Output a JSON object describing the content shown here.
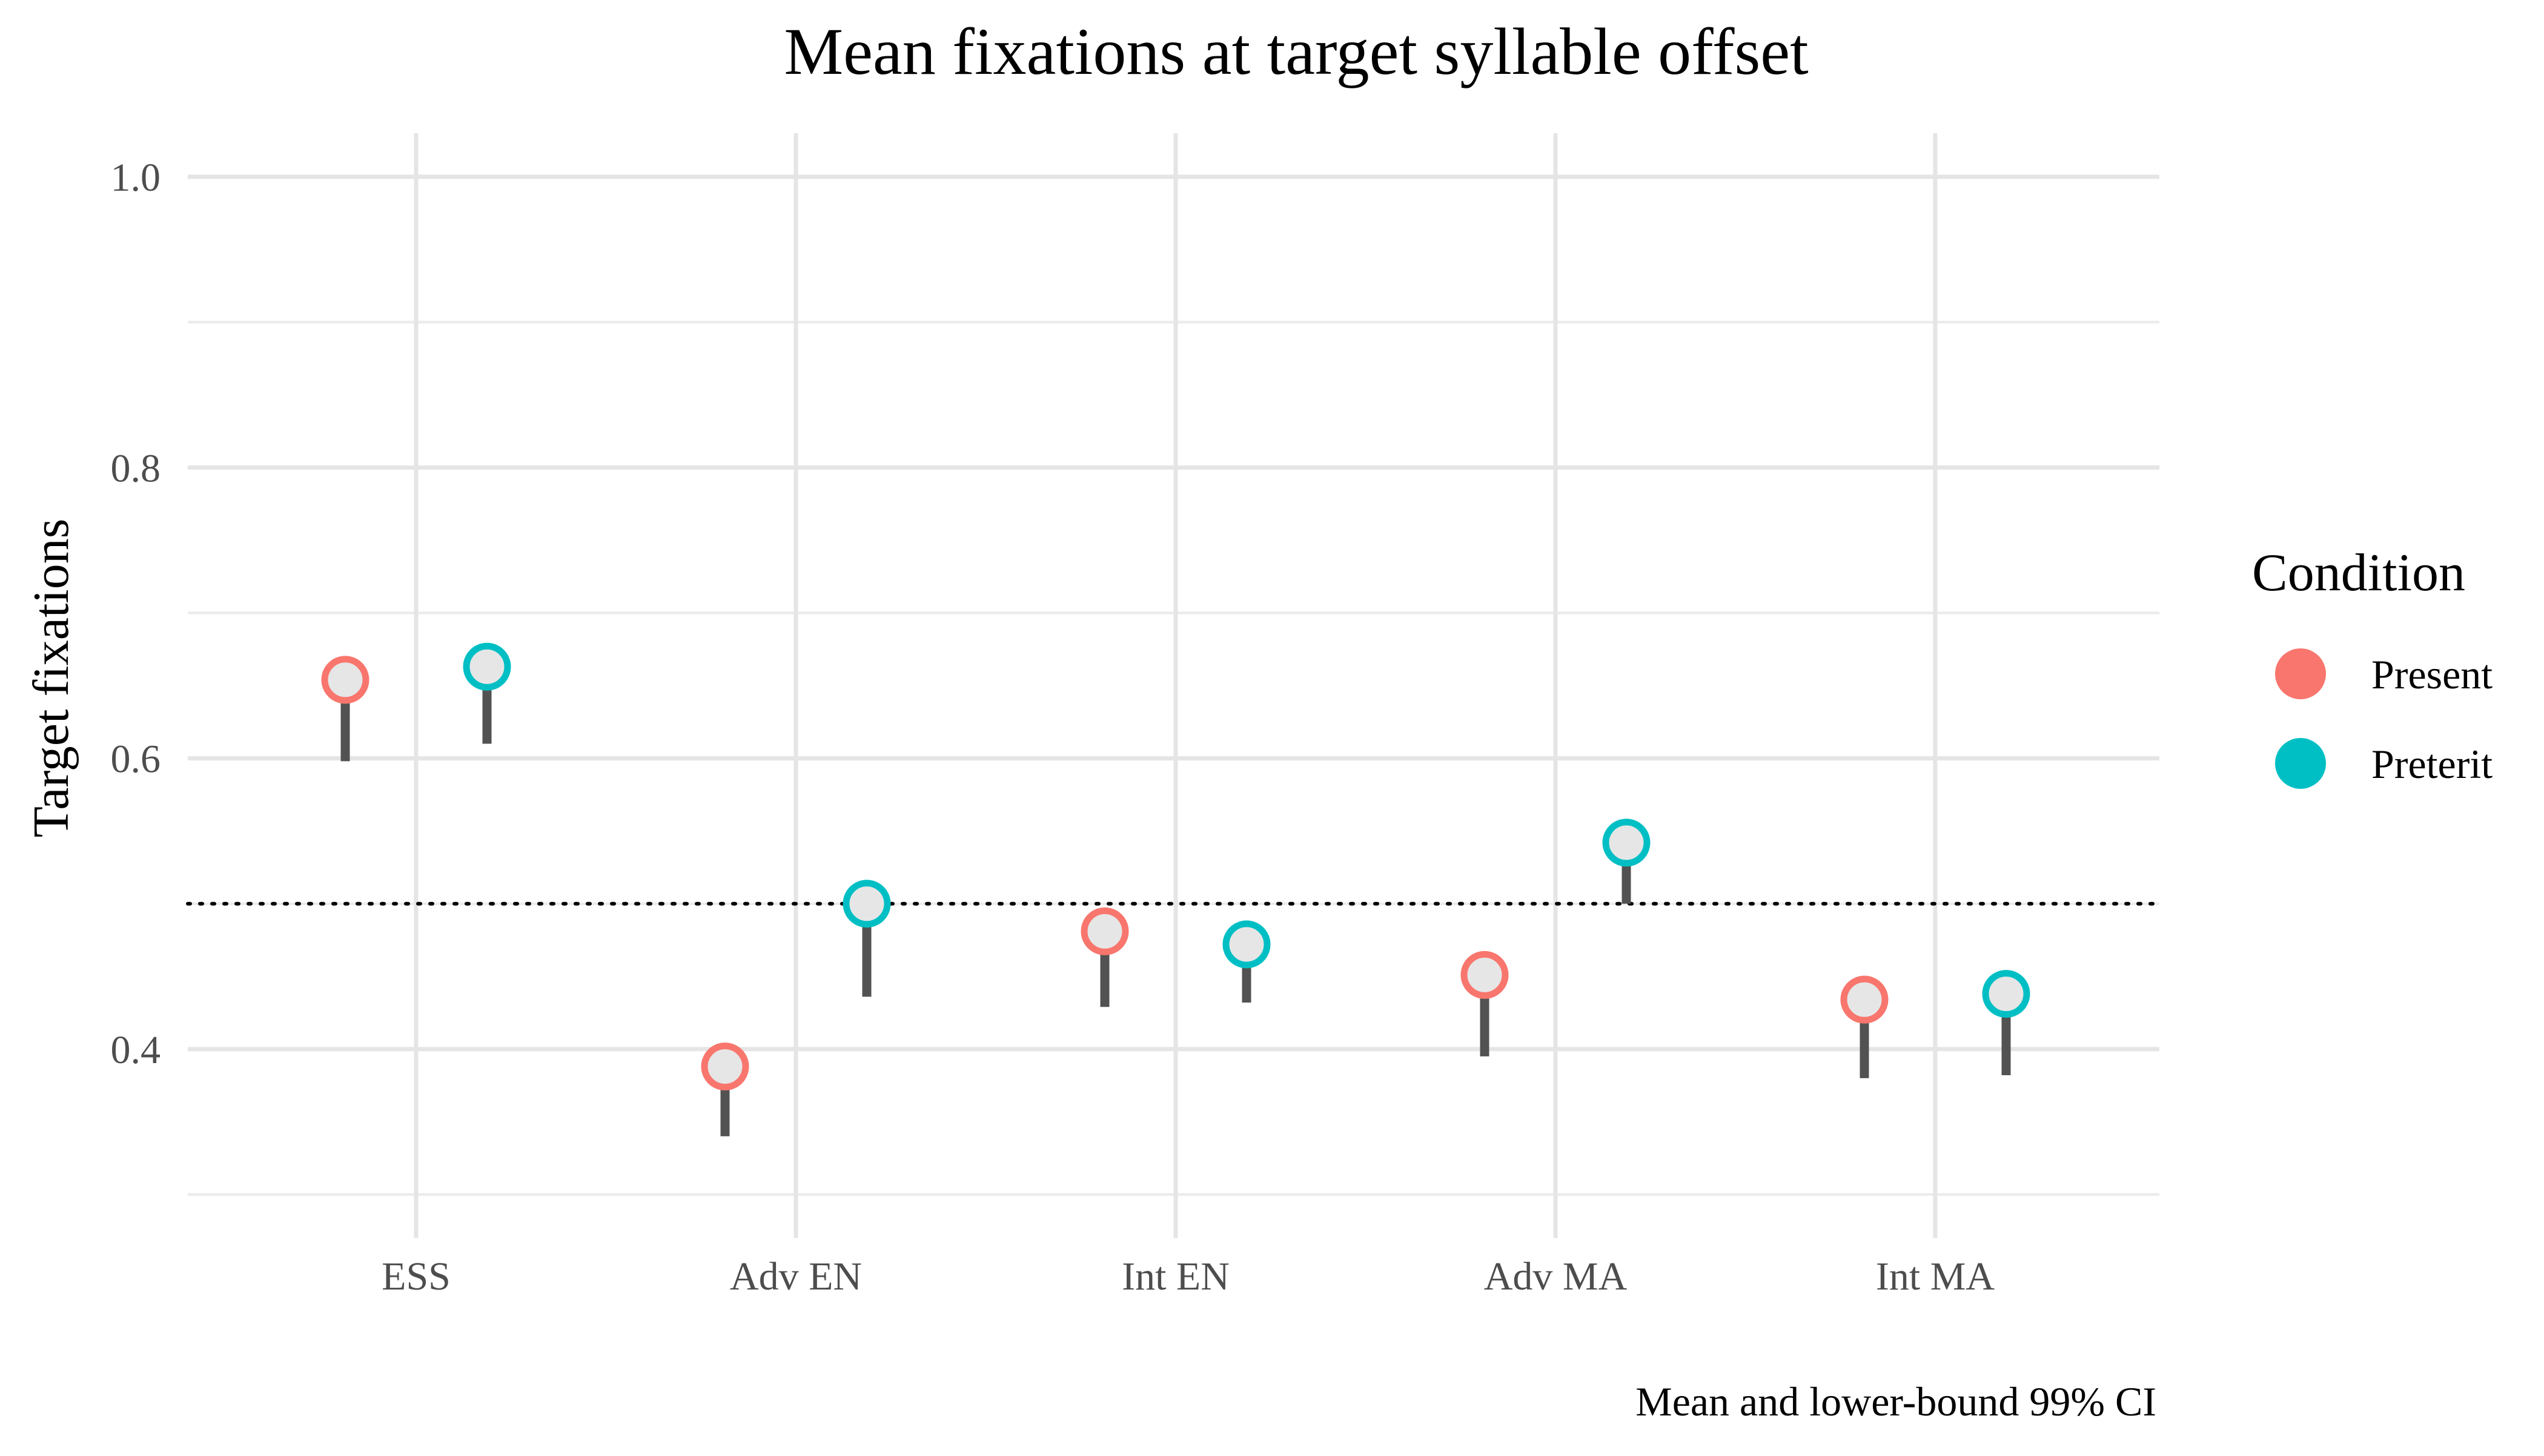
{
  "chart_data": {
    "type": "scatter",
    "title": "Mean fixations at target syllable offset",
    "xlabel": "",
    "ylabel": "Target fixations",
    "caption": "Mean and lower-bound 99% CI",
    "categories": [
      "ESS",
      "Adv EN",
      "Int EN",
      "Adv MA",
      "Int MA"
    ],
    "ylim": [
      0.27,
      1.03
    ],
    "y_ticks": [
      0.4,
      0.6,
      0.8,
      1.0
    ],
    "y_tick_labels": [
      "0.4",
      "0.6",
      "0.8",
      "1.0"
    ],
    "y_minor_ticks": [
      0.3,
      0.5,
      0.7,
      0.9
    ],
    "reference_line": 0.5,
    "legend": {
      "title": "Condition",
      "position": "right"
    },
    "series": [
      {
        "name": "Present",
        "color": "#F8766D",
        "values": [
          0.654,
          0.388,
          0.481,
          0.451,
          0.434
        ],
        "lower_ci": [
          0.598,
          0.34,
          0.429,
          0.395,
          0.38
        ]
      },
      {
        "name": "Preterit",
        "color": "#00BFC4",
        "values": [
          0.663,
          0.5,
          0.472,
          0.542,
          0.438
        ],
        "lower_ci": [
          0.61,
          0.436,
          0.432,
          0.5,
          0.382
        ]
      }
    ],
    "point_fill": "#E6E6E6",
    "ci_color": "#525252",
    "grid": true
  }
}
